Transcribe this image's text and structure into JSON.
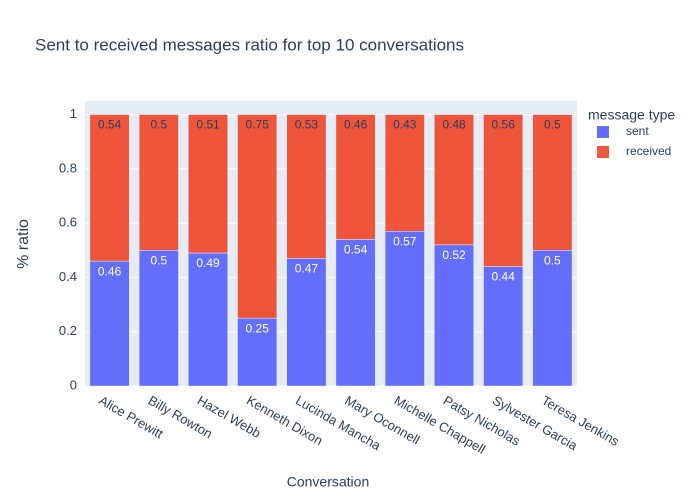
{
  "chart_data": {
    "type": "stacked_bar",
    "title": "Sent to received messages ratio for top 10 conversations",
    "x_label": "Conversation",
    "y_label": "% ratio",
    "legend_title": "message type",
    "categories": [
      "Alice Prewitt",
      "Billy Rowton",
      "Hazel Webb",
      "Kenneth Dixon",
      "Lucinda Mancha",
      "Mary Oconnell",
      "Michelle Chappell",
      "Patsy Nicholas",
      "Sylvester Garcia",
      "Teresa Jenkins"
    ],
    "series": [
      {
        "name": "sent",
        "color": "#636efa",
        "values": [
          0.46,
          0.5,
          0.49,
          0.25,
          0.47,
          0.54,
          0.57,
          0.52,
          0.44,
          0.5
        ]
      },
      {
        "name": "received",
        "color": "#ef553b",
        "values": [
          0.54,
          0.5,
          0.51,
          0.75,
          0.53,
          0.46,
          0.43,
          0.48,
          0.56,
          0.5
        ]
      }
    ],
    "ylim": [
      0,
      1.05
    ],
    "yticks": [
      0,
      0.2,
      0.4,
      0.6,
      0.8,
      1
    ],
    "grid": true
  }
}
